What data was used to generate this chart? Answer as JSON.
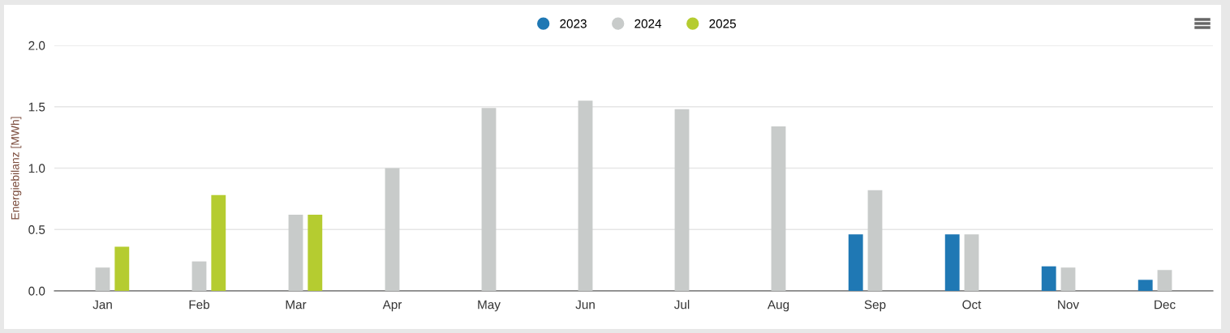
{
  "chart_data": {
    "type": "bar",
    "ylabel": "Energiebilanz [MWh]",
    "categories": [
      "Jan",
      "Feb",
      "Mar",
      "Apr",
      "May",
      "Jun",
      "Jul",
      "Aug",
      "Sep",
      "Oct",
      "Nov",
      "Dec"
    ],
    "series": [
      {
        "name": "2023",
        "color": "#1f78b4",
        "values": [
          null,
          null,
          null,
          null,
          null,
          null,
          null,
          null,
          0.46,
          0.46,
          0.2,
          0.09
        ]
      },
      {
        "name": "2024",
        "color": "#c8cbca",
        "values": [
          0.19,
          0.24,
          0.62,
          1.0,
          1.49,
          1.55,
          1.48,
          1.34,
          0.82,
          0.46,
          0.19,
          0.17
        ]
      },
      {
        "name": "2025",
        "color": "#b5cc30",
        "values": [
          0.36,
          0.78,
          0.62,
          null,
          null,
          null,
          null,
          null,
          null,
          null,
          null,
          null
        ]
      }
    ],
    "ylim": [
      0,
      2.0
    ],
    "yticks": [
      {
        "value": 0,
        "label": "0.0"
      },
      {
        "value": 0.5,
        "label": "0.5"
      },
      {
        "value": 1.0,
        "label": "1.0"
      },
      {
        "value": 1.5,
        "label": "1.5"
      },
      {
        "value": 2.0,
        "label": "2.0"
      }
    ],
    "grid": "y",
    "legend": "top"
  }
}
